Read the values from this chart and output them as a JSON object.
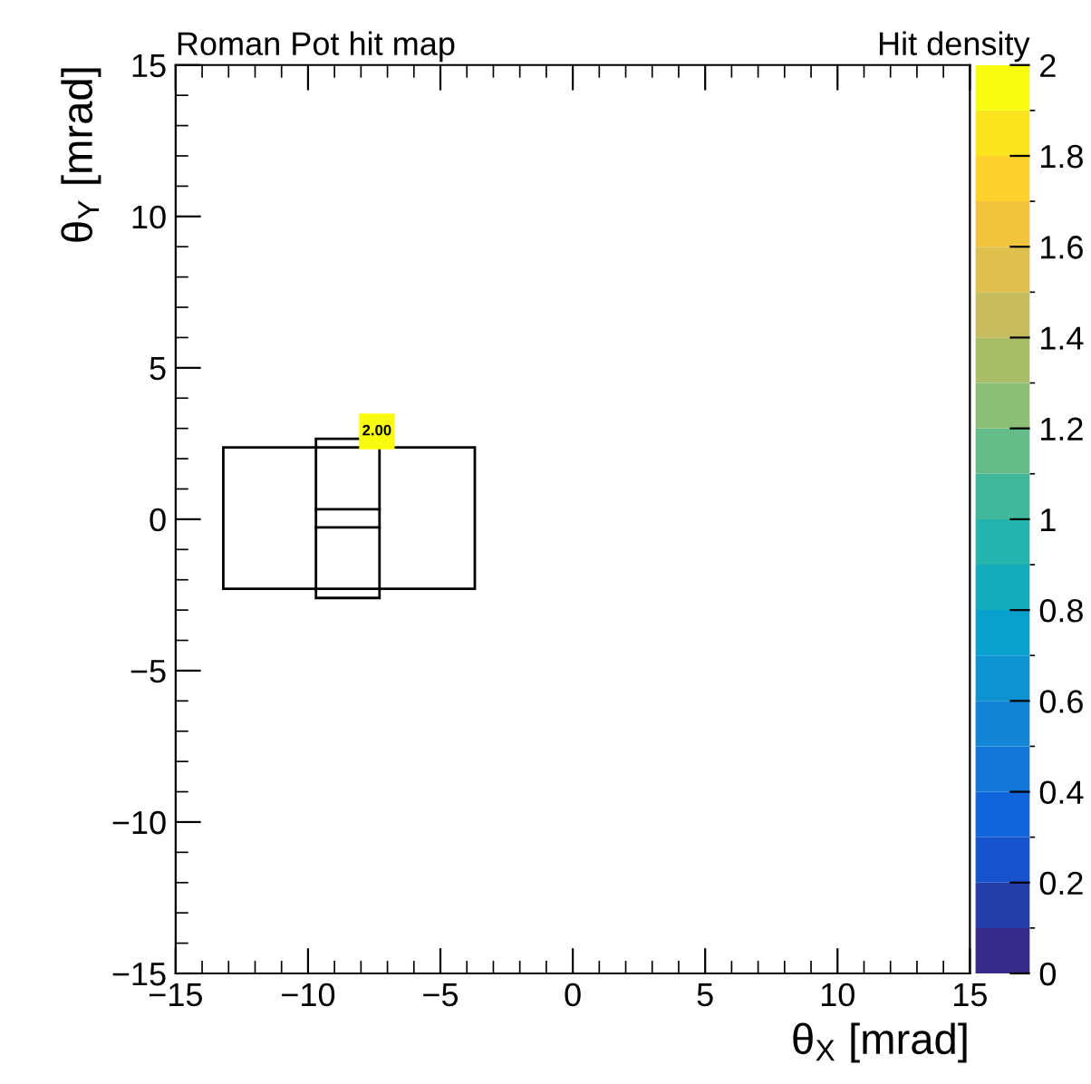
{
  "chart_data": {
    "type": "scatter",
    "title": "Roman Pot hit map",
    "xlabel": "θ$_{X}$ [mrad]",
    "ylabel": "θ$_{Y}$ [mrad]",
    "clabel": "Hit density",
    "x": [
      -7.4
    ],
    "values": [
      2.9
    ],
    "cvalues": [
      2
    ],
    "annotations": [
      {
        "text": "2.00",
        "x": -7.4,
        "y": 2.9
      }
    ],
    "marker": "square",
    "xlim": [
      -15,
      15
    ],
    "xticks": [
      -15,
      -10,
      -5,
      0,
      5,
      10,
      15
    ],
    "ylim": [
      -15,
      15
    ],
    "yticks": [
      -15,
      -10,
      -5,
      0,
      5,
      10,
      15
    ],
    "clim": [
      0,
      2
    ],
    "cticks": [
      0,
      0.2,
      0.4,
      0.6,
      0.8,
      1,
      1.2,
      1.4,
      1.6,
      1.8,
      2
    ],
    "grid": false
  }
}
